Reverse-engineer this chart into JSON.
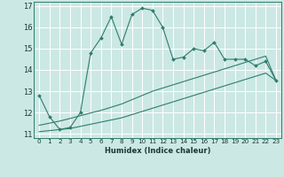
{
  "xlabel": "Humidex (Indice chaleur)",
  "background_color": "#cce8e4",
  "grid_color": "#ffffff",
  "line_color": "#2e7d6e",
  "xlim": [
    -0.5,
    23.5
  ],
  "ylim": [
    10.8,
    17.2
  ],
  "yticks": [
    11,
    12,
    13,
    14,
    15,
    16,
    17
  ],
  "xticks": [
    0,
    1,
    2,
    3,
    4,
    5,
    6,
    7,
    8,
    9,
    10,
    11,
    12,
    13,
    14,
    15,
    16,
    17,
    18,
    19,
    20,
    21,
    22,
    23
  ],
  "main_line_y": [
    12.8,
    11.8,
    11.2,
    11.3,
    12.0,
    14.8,
    15.5,
    16.5,
    15.2,
    16.6,
    16.9,
    16.8,
    16.0,
    14.5,
    14.6,
    15.0,
    14.9,
    15.3,
    14.5,
    14.5,
    14.5,
    14.2,
    14.4,
    13.5
  ],
  "lower_line_y": [
    11.1,
    11.15,
    11.2,
    11.25,
    11.35,
    11.45,
    11.55,
    11.65,
    11.75,
    11.9,
    12.05,
    12.2,
    12.35,
    12.5,
    12.65,
    12.8,
    12.95,
    13.1,
    13.25,
    13.4,
    13.55,
    13.7,
    13.85,
    13.5
  ],
  "middle_line_y": [
    11.4,
    11.5,
    11.6,
    11.72,
    11.85,
    11.98,
    12.1,
    12.25,
    12.4,
    12.6,
    12.8,
    13.0,
    13.15,
    13.3,
    13.45,
    13.6,
    13.75,
    13.9,
    14.05,
    14.2,
    14.35,
    14.5,
    14.65,
    13.5
  ]
}
